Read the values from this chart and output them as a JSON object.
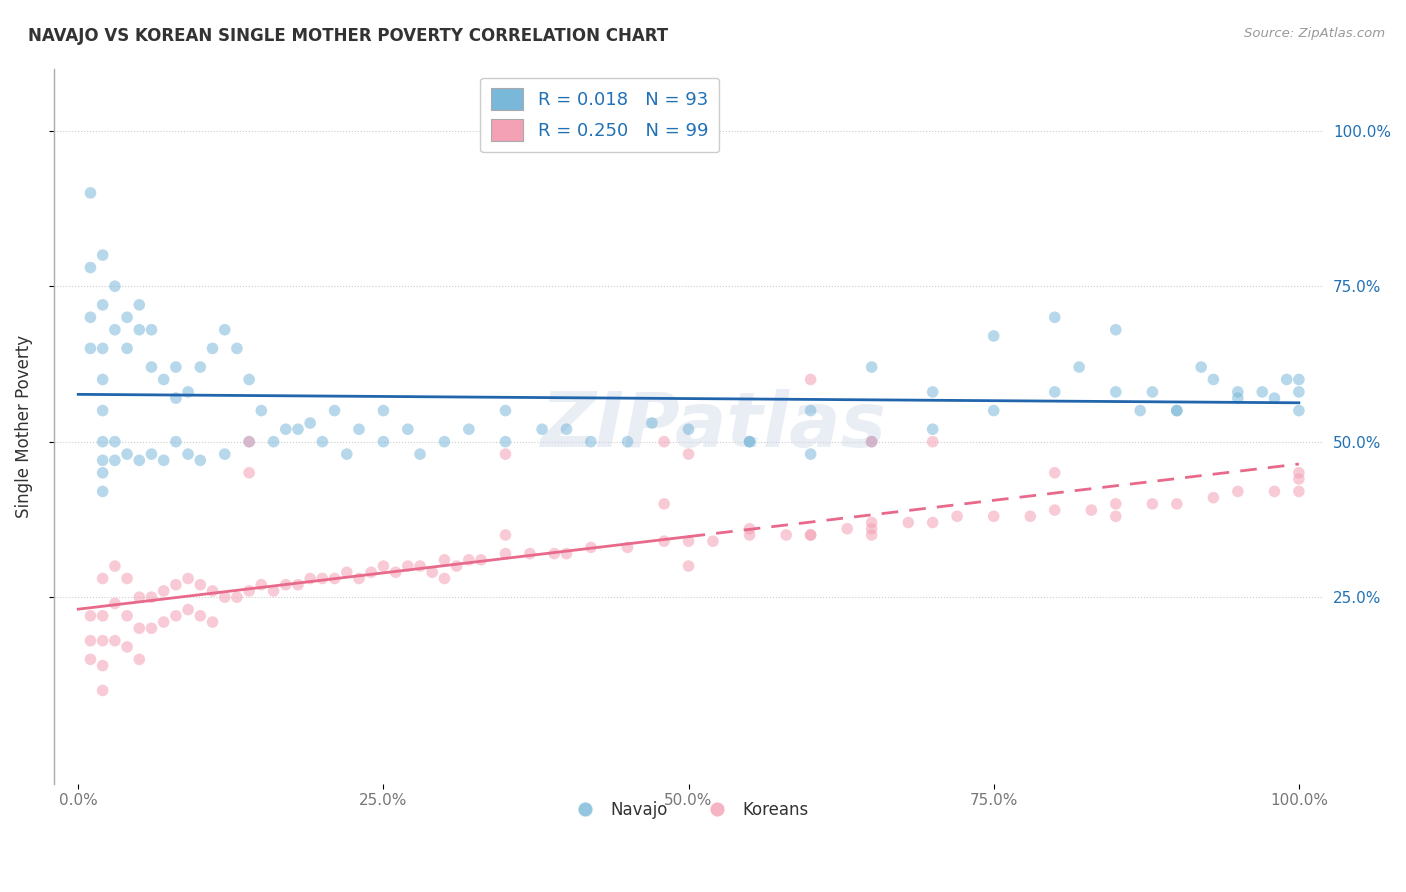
{
  "title": "NAVAJO VS KOREAN SINGLE MOTHER POVERTY CORRELATION CHART",
  "source": "Source: ZipAtlas.com",
  "ylabel": "Single Mother Poverty",
  "xlim": [
    -0.02,
    1.02
  ],
  "ylim": [
    -0.05,
    1.1
  ],
  "xtick_positions": [
    0.0,
    0.25,
    0.5,
    0.75,
    1.0
  ],
  "xtick_labels": [
    "0.0%",
    "25.0%",
    "50.0%",
    "75.0%",
    "100.0%"
  ],
  "ytick_positions": [
    0.25,
    0.5,
    0.75,
    1.0
  ],
  "ytick_labels": [
    "25.0%",
    "50.0%",
    "75.0%",
    "100.0%"
  ],
  "navajo_color": "#7ab8d9",
  "korean_color": "#f4a0b5",
  "navajo_R": 0.018,
  "navajo_N": 93,
  "korean_R": 0.25,
  "korean_N": 99,
  "legend_R_color": "#2171b5",
  "watermark": "ZIPatlas",
  "navajo_x": [
    0.01,
    0.01,
    0.01,
    0.01,
    0.02,
    0.02,
    0.02,
    0.02,
    0.02,
    0.02,
    0.03,
    0.03,
    0.04,
    0.04,
    0.05,
    0.05,
    0.06,
    0.06,
    0.07,
    0.08,
    0.08,
    0.09,
    0.1,
    0.11,
    0.12,
    0.13,
    0.14,
    0.15,
    0.17,
    0.19,
    0.21,
    0.23,
    0.25,
    0.27,
    0.3,
    0.32,
    0.35,
    0.38,
    0.42,
    0.47,
    0.55,
    0.6,
    0.65,
    0.7,
    0.75,
    0.8,
    0.82,
    0.85,
    0.87,
    0.88,
    0.9,
    0.92,
    0.93,
    0.95,
    0.97,
    0.98,
    0.99,
    1.0,
    1.0,
    1.0,
    0.02,
    0.02,
    0.02,
    0.03,
    0.03,
    0.04,
    0.05,
    0.06,
    0.07,
    0.08,
    0.09,
    0.1,
    0.12,
    0.14,
    0.16,
    0.18,
    0.2,
    0.22,
    0.25,
    0.28,
    0.35,
    0.4,
    0.45,
    0.5,
    0.55,
    0.6,
    0.65,
    0.7,
    0.75,
    0.8,
    0.85,
    0.9,
    0.95
  ],
  "navajo_y": [
    0.9,
    0.78,
    0.7,
    0.65,
    0.8,
    0.72,
    0.65,
    0.6,
    0.55,
    0.5,
    0.75,
    0.68,
    0.7,
    0.65,
    0.72,
    0.68,
    0.68,
    0.62,
    0.6,
    0.62,
    0.57,
    0.58,
    0.62,
    0.65,
    0.68,
    0.65,
    0.6,
    0.55,
    0.52,
    0.53,
    0.55,
    0.52,
    0.55,
    0.52,
    0.5,
    0.52,
    0.55,
    0.52,
    0.5,
    0.53,
    0.5,
    0.55,
    0.62,
    0.58,
    0.67,
    0.7,
    0.62,
    0.68,
    0.55,
    0.58,
    0.55,
    0.62,
    0.6,
    0.58,
    0.58,
    0.57,
    0.6,
    0.58,
    0.55,
    0.6,
    0.47,
    0.45,
    0.42,
    0.5,
    0.47,
    0.48,
    0.47,
    0.48,
    0.47,
    0.5,
    0.48,
    0.47,
    0.48,
    0.5,
    0.5,
    0.52,
    0.5,
    0.48,
    0.5,
    0.48,
    0.5,
    0.52,
    0.5,
    0.52,
    0.5,
    0.48,
    0.5,
    0.52,
    0.55,
    0.58,
    0.58,
    0.55,
    0.57
  ],
  "korean_x": [
    0.01,
    0.01,
    0.01,
    0.02,
    0.02,
    0.02,
    0.02,
    0.02,
    0.03,
    0.03,
    0.03,
    0.04,
    0.04,
    0.04,
    0.05,
    0.05,
    0.05,
    0.06,
    0.06,
    0.07,
    0.07,
    0.08,
    0.08,
    0.09,
    0.09,
    0.1,
    0.1,
    0.11,
    0.11,
    0.12,
    0.13,
    0.14,
    0.15,
    0.16,
    0.17,
    0.18,
    0.19,
    0.2,
    0.21,
    0.22,
    0.23,
    0.24,
    0.25,
    0.26,
    0.27,
    0.28,
    0.29,
    0.3,
    0.31,
    0.32,
    0.33,
    0.35,
    0.37,
    0.39,
    0.42,
    0.45,
    0.48,
    0.5,
    0.52,
    0.55,
    0.58,
    0.6,
    0.63,
    0.65,
    0.68,
    0.7,
    0.72,
    0.75,
    0.78,
    0.8,
    0.83,
    0.85,
    0.88,
    0.9,
    0.93,
    0.95,
    0.98,
    1.0,
    1.0,
    1.0,
    0.14,
    0.14,
    0.35,
    0.35,
    0.48,
    0.48,
    0.6,
    0.65,
    0.65,
    0.6,
    0.4,
    0.55,
    0.7,
    0.85,
    0.5,
    0.3,
    0.5,
    0.65,
    0.8
  ],
  "korean_y": [
    0.22,
    0.18,
    0.15,
    0.28,
    0.22,
    0.18,
    0.14,
    0.1,
    0.3,
    0.24,
    0.18,
    0.28,
    0.22,
    0.17,
    0.25,
    0.2,
    0.15,
    0.25,
    0.2,
    0.26,
    0.21,
    0.27,
    0.22,
    0.28,
    0.23,
    0.27,
    0.22,
    0.26,
    0.21,
    0.25,
    0.25,
    0.26,
    0.27,
    0.26,
    0.27,
    0.27,
    0.28,
    0.28,
    0.28,
    0.29,
    0.28,
    0.29,
    0.3,
    0.29,
    0.3,
    0.3,
    0.29,
    0.31,
    0.3,
    0.31,
    0.31,
    0.32,
    0.32,
    0.32,
    0.33,
    0.33,
    0.34,
    0.34,
    0.34,
    0.35,
    0.35,
    0.35,
    0.36,
    0.36,
    0.37,
    0.37,
    0.38,
    0.38,
    0.38,
    0.39,
    0.39,
    0.4,
    0.4,
    0.4,
    0.41,
    0.42,
    0.42,
    0.42,
    0.44,
    0.45,
    0.5,
    0.45,
    0.48,
    0.35,
    0.5,
    0.4,
    0.6,
    0.37,
    0.5,
    0.35,
    0.32,
    0.36,
    0.5,
    0.38,
    0.48,
    0.28,
    0.3,
    0.35,
    0.45
  ],
  "background_color": "#ffffff",
  "grid_color": "#e0e0e0",
  "marker_size": 70,
  "marker_alpha": 0.55
}
